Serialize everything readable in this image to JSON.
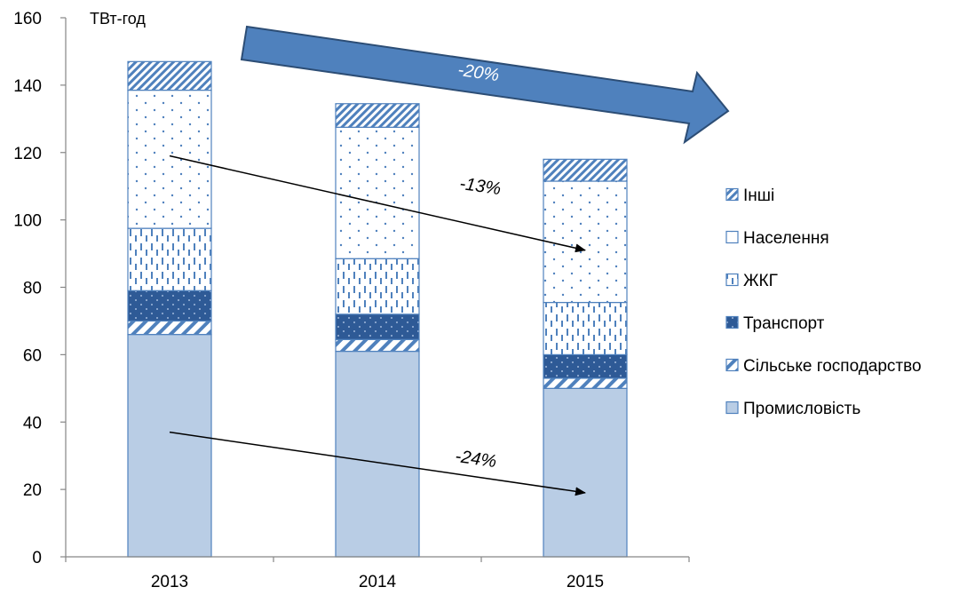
{
  "chart_data": {
    "type": "bar",
    "stacked": true,
    "categories": [
      "2013",
      "2014",
      "2015"
    ],
    "unit_label": "ТВт-год",
    "ylim": [
      0,
      160
    ],
    "yticks": [
      0,
      20,
      40,
      60,
      80,
      100,
      120,
      140,
      160
    ],
    "grid": false,
    "legend_position": "right",
    "series": [
      {
        "name": "Промисловість",
        "values": [
          66,
          61,
          50
        ],
        "color": "#b9cde5",
        "pattern": "solid"
      },
      {
        "name": "Сільське господарство",
        "values": [
          4,
          3.5,
          3
        ],
        "color": "#4f81bd",
        "pattern": "diagonal-light"
      },
      {
        "name": "Транспорт",
        "values": [
          9,
          7.5,
          7
        ],
        "color": "#2e5a96",
        "pattern": "dark-dotted"
      },
      {
        "name": "ЖКГ",
        "values": [
          18.5,
          16.5,
          15.5
        ],
        "color": "#4f81bd",
        "pattern": "dashed-vertical"
      },
      {
        "name": "Населення",
        "values": [
          41,
          39,
          36
        ],
        "color": "#4f81bd",
        "pattern": "dotted"
      },
      {
        "name": "Інші",
        "values": [
          8.5,
          7,
          6.5
        ],
        "color": "#4f81bd",
        "pattern": "diagonal-dense"
      }
    ],
    "annotations": [
      {
        "text": "-20%",
        "type": "block-arrow",
        "color": "#4f81bd"
      },
      {
        "text": "-13%",
        "type": "arrow",
        "from": {
          "x": "2013",
          "y": 119
        },
        "to": {
          "x": "2015",
          "y": 91
        }
      },
      {
        "text": "-24%",
        "type": "arrow",
        "from": {
          "x": "2013",
          "y": 37
        },
        "to": {
          "x": "2015",
          "y": 19
        }
      }
    ]
  }
}
